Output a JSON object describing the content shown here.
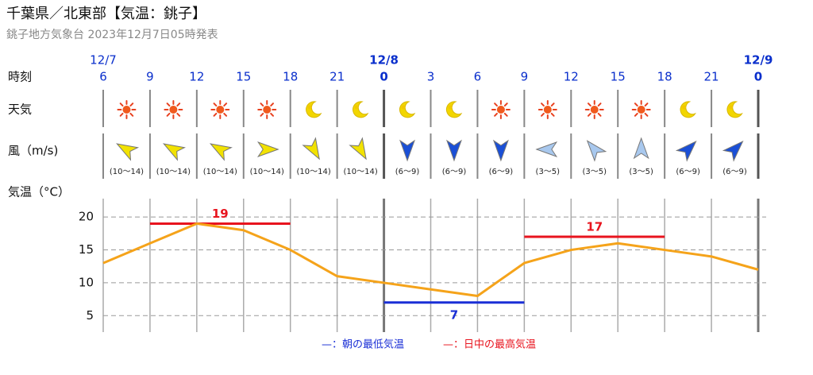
{
  "header": {
    "title": "千葉県／北東部【気温：銚子】",
    "subtitle": "銚子地方気象台 2023年12月7日05時発表"
  },
  "chart_data": {
    "type": "line",
    "row_labels": {
      "time": "時刻",
      "weather": "天気",
      "wind": "風（m/s)",
      "temperature": "気温（°C）"
    },
    "date_labels": [
      "12/7",
      null,
      null,
      null,
      null,
      null,
      "12/8",
      null,
      null,
      null,
      null,
      null,
      null,
      null,
      "12/9"
    ],
    "categories": [
      "6",
      "9",
      "12",
      "15",
      "18",
      "21",
      "0",
      "3",
      "6",
      "9",
      "12",
      "15",
      "18",
      "21",
      "0"
    ],
    "values": [
      13,
      16,
      19,
      18,
      15,
      11,
      10,
      9,
      8,
      13,
      15,
      16,
      15,
      14,
      12
    ],
    "color": "#f5a31a",
    "series": [
      {
        "name": "—：朝の最低気温",
        "color": "#1a2fd6",
        "values": [
          null,
          null,
          null,
          null,
          null,
          null,
          7,
          7,
          7,
          7,
          null,
          null,
          null,
          null,
          null
        ]
      },
      {
        "name": "—：日中の最高気温",
        "color": "#e8141e",
        "values": [
          null,
          19,
          19,
          19,
          19,
          null,
          null,
          null,
          null,
          17,
          17,
          17,
          17,
          null,
          null
        ]
      }
    ],
    "wind_speeds": [
      "(10〜14)",
      "(10〜14)",
      "(10〜14)",
      "(10〜14)",
      "(10〜14)",
      "(10〜14)",
      "(6〜9)",
      "(6〜9)",
      "(6〜9)",
      "(3〜5)",
      "(3〜5)",
      "(3〜5)",
      "(6〜9)",
      "(6〜9)"
    ],
    "wind_directions": [
      300,
      300,
      300,
      90,
      150,
      150,
      180,
      180,
      180,
      270,
      320,
      0,
      45,
      45
    ],
    "wind_colors": [
      "#f2e200",
      "#f2e200",
      "#f2e200",
      "#f2e200",
      "#f2e200",
      "#f2e200",
      "#1a4fd6",
      "#1a4fd6",
      "#1a4fd6",
      "#a8c8ee",
      "#a8c8ee",
      "#a8c8ee",
      "#1a4fd6",
      "#1a4fd6"
    ],
    "ylim": [
      2.5,
      22.8
    ],
    "yticks": [
      5,
      10,
      15,
      20
    ],
    "grid": true
  }
}
